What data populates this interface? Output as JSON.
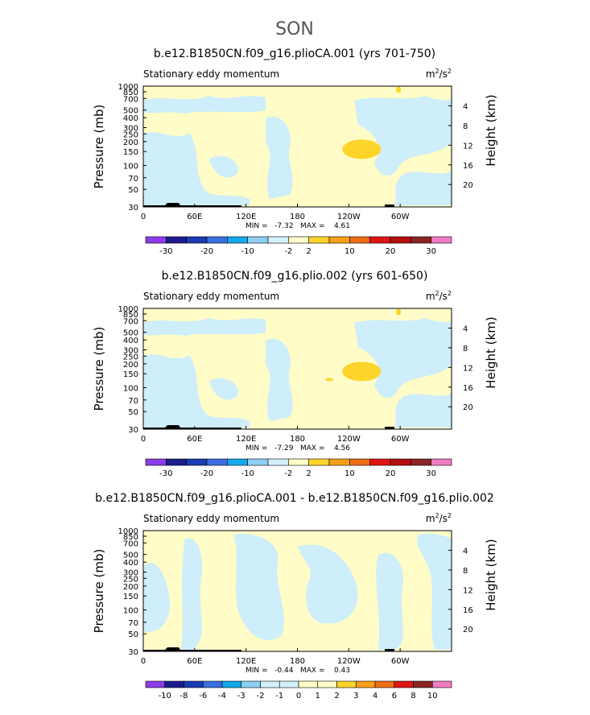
{
  "figure": {
    "season_title": "SON"
  },
  "colors": {
    "bg_light_blue": "#cdeefa",
    "bg_cream": "#fffcc8",
    "feature_yellow": "#fdd52a",
    "outline": "#000000",
    "abs_colorbar": [
      "#8c3ce8",
      "#1c1c8c",
      "#1a3cb4",
      "#3c6ee0",
      "#14a8ec",
      "#8cd0f5",
      "#d4f0fc",
      "#fffcc8",
      "#fdd52a",
      "#f7a019",
      "#ee6e14",
      "#e01414",
      "#b40f0f",
      "#8c2424",
      "#f07cc4"
    ],
    "diff_colorbar": [
      "#8c3ce8",
      "#1c1c8c",
      "#1a3cb4",
      "#3c6ee0",
      "#14a8ec",
      "#8cd0f5",
      "#d4f0fc",
      "#d4f0fc",
      "#fffcc8",
      "#fffcc8",
      "#fdd52a",
      "#f7a019",
      "#ee6e14",
      "#e01414",
      "#8c2424",
      "#f07cc4"
    ]
  },
  "chart_data": [
    {
      "type": "heatmap",
      "title": "b.e12.B1850CN.f09_g16.plioCA.001 (yrs 701-750)",
      "subtitle_left": "Stationary eddy momentum",
      "units": "m²/s²",
      "units_base": "m",
      "units_sup1": "2",
      "units_mid": "/s",
      "units_sup2": "2",
      "ylabel": "Pressure (mb)",
      "y2label": "Height (km)",
      "x_ticks": [
        "0",
        "60E",
        "120E",
        "180",
        "120W",
        "60W"
      ],
      "x_range_deg_east": [
        0,
        360
      ],
      "y_ticks_mb": [
        "30",
        "50",
        "70",
        "100",
        "150",
        "200",
        "250",
        "300",
        "400",
        "500",
        "700",
        "850",
        "1000"
      ],
      "y_range_mb": [
        1000,
        30
      ],
      "y_scale": "log",
      "height_ticks_km": [
        "4",
        "8",
        "12",
        "16",
        "20"
      ],
      "stats": "MIN =   -7.32   MAX =    4.61",
      "min": -7.32,
      "max": 4.61,
      "colorbar_labels": [
        "-30",
        "-20",
        "-10",
        "-2",
        "2",
        "10",
        "20",
        "30"
      ],
      "colorbar_levels": [
        -40,
        -30,
        -25,
        -20,
        -15,
        -10,
        -5,
        -2,
        2,
        5,
        10,
        15,
        20,
        25,
        30,
        40
      ]
    },
    {
      "type": "heatmap",
      "title": "b.e12.B1850CN.f09_g16.plio.002 (yrs 601-650)",
      "subtitle_left": "Stationary eddy momentum",
      "units": "m²/s²",
      "units_base": "m",
      "units_sup1": "2",
      "units_mid": "/s",
      "units_sup2": "2",
      "ylabel": "Pressure (mb)",
      "y2label": "Height (km)",
      "x_ticks": [
        "0",
        "60E",
        "120E",
        "180",
        "120W",
        "60W"
      ],
      "x_range_deg_east": [
        0,
        360
      ],
      "y_ticks_mb": [
        "30",
        "50",
        "70",
        "100",
        "150",
        "200",
        "250",
        "300",
        "400",
        "500",
        "700",
        "850",
        "1000"
      ],
      "y_range_mb": [
        1000,
        30
      ],
      "y_scale": "log",
      "height_ticks_km": [
        "4",
        "8",
        "12",
        "16",
        "20"
      ],
      "stats": "MIN =   -7.29   MAX =    4.56",
      "min": -7.29,
      "max": 4.56,
      "colorbar_labels": [
        "-30",
        "-20",
        "-10",
        "-2",
        "2",
        "10",
        "20",
        "30"
      ],
      "colorbar_levels": [
        -40,
        -30,
        -25,
        -20,
        -15,
        -10,
        -5,
        -2,
        2,
        5,
        10,
        15,
        20,
        25,
        30,
        40
      ]
    },
    {
      "type": "heatmap",
      "title": "b.e12.B1850CN.f09_g16.plioCA.001 - b.e12.B1850CN.f09_g16.plio.002",
      "subtitle_left": "Stationary eddy momentum",
      "units": "m²/s²",
      "units_base": "m",
      "units_sup1": "2",
      "units_mid": "/s",
      "units_sup2": "2",
      "ylabel": "Pressure (mb)",
      "y2label": "Height (km)",
      "x_ticks": [
        "0",
        "60E",
        "120E",
        "180",
        "120W",
        "60W"
      ],
      "x_range_deg_east": [
        0,
        360
      ],
      "y_ticks_mb": [
        "30",
        "50",
        "70",
        "100",
        "150",
        "200",
        "250",
        "300",
        "400",
        "500",
        "700",
        "850",
        "1000"
      ],
      "y_range_mb": [
        1000,
        30
      ],
      "y_scale": "log",
      "height_ticks_km": [
        "4",
        "8",
        "12",
        "16",
        "20"
      ],
      "stats": "MIN =   -0.44   MAX =    0.43",
      "min": -0.44,
      "max": 0.43,
      "colorbar_labels": [
        "-10",
        "-8",
        "-6",
        "-4",
        "-3",
        "-2",
        "-1",
        "0",
        "1",
        "2",
        "3",
        "4",
        "6",
        "8",
        "10"
      ],
      "colorbar_levels": [
        -12,
        -10,
        -8,
        -6,
        -4,
        -3,
        -2,
        -1,
        0,
        1,
        2,
        3,
        4,
        6,
        8,
        10,
        12
      ]
    }
  ]
}
